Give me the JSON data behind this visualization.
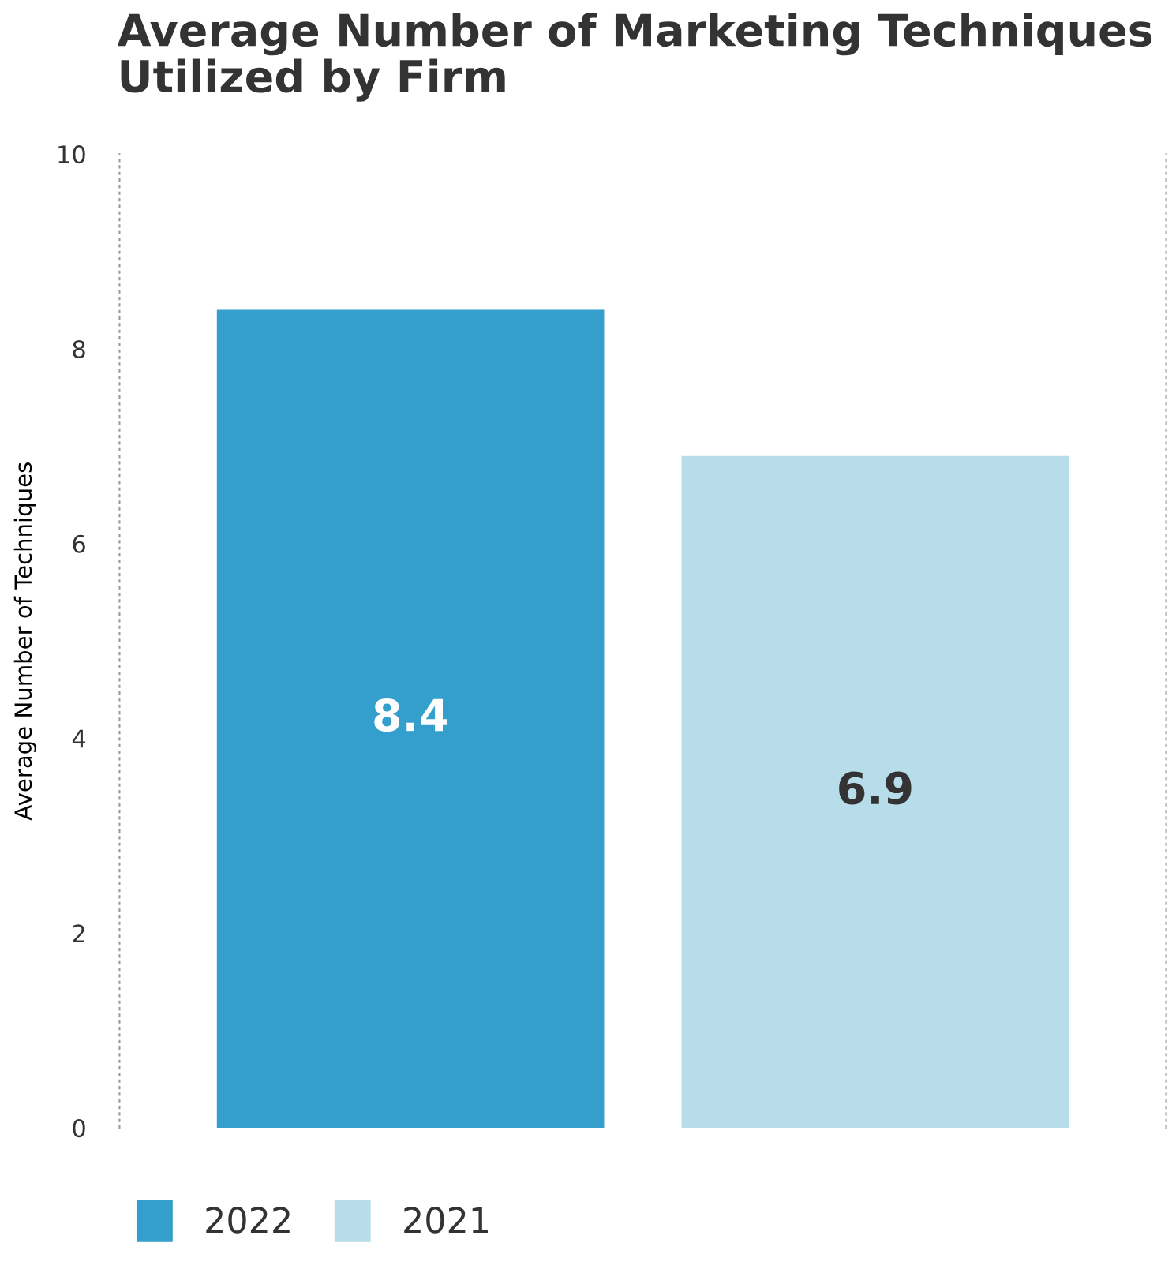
{
  "chart_data": {
    "type": "bar",
    "title": "Average Number of Marketing Techniques\nUtilized by Firm",
    "ylabel": "Average Number of Techniques",
    "categories": [
      null
    ],
    "series": [
      {
        "name": "2022",
        "color": "#349fcc",
        "values": [
          8.4
        ]
      },
      {
        "name": "2021",
        "color": "#b7dcea",
        "values": [
          6.9
        ]
      }
    ],
    "ylim": [
      0,
      10
    ],
    "yticks": [
      0,
      2,
      4,
      6,
      8,
      10
    ],
    "grid": false,
    "data_labels": true,
    "legend": "bottom left",
    "tick_labels": "y"
  }
}
